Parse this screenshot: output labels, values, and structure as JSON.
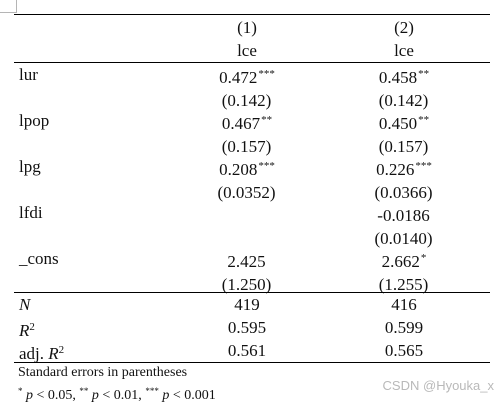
{
  "table": {
    "header": {
      "col1_number": "(1)",
      "col2_number": "(2)",
      "col1_depvar": "lce",
      "col2_depvar": "lce"
    },
    "rows": [
      {
        "label": "lur",
        "c1": "0.472",
        "c1_stars": "***",
        "c2": "0.458",
        "c2_stars": "**"
      },
      {
        "label": "",
        "c1": "(0.142)",
        "c1_stars": "",
        "c2": "(0.142)",
        "c2_stars": ""
      },
      {
        "label": "lpop",
        "c1": "0.467",
        "c1_stars": "**",
        "c2": "0.450",
        "c2_stars": "**"
      },
      {
        "label": "",
        "c1": "(0.157)",
        "c1_stars": "",
        "c2": "(0.157)",
        "c2_stars": ""
      },
      {
        "label": "lpg",
        "c1": "0.208",
        "c1_stars": "***",
        "c2": "0.226",
        "c2_stars": "***"
      },
      {
        "label": "",
        "c1": "(0.0352)",
        "c1_stars": "",
        "c2": "(0.0366)",
        "c2_stars": ""
      },
      {
        "label": "lfdi",
        "c1": "",
        "c1_stars": "",
        "c2": "-0.0186",
        "c2_stars": ""
      },
      {
        "label": "",
        "c1": "",
        "c1_stars": "",
        "c2": "(0.0140)",
        "c2_stars": ""
      },
      {
        "label": "_cons",
        "c1": "2.425",
        "c1_stars": "",
        "c2": "2.662",
        "c2_stars": "*"
      },
      {
        "label": "",
        "c1": "(1.250)",
        "c1_stars": "",
        "c2": "(1.255)",
        "c2_stars": ""
      }
    ],
    "stats": {
      "n_label": "N",
      "n_c1": "419",
      "n_c2": "416",
      "r2_label": "R",
      "r2_sup": "2",
      "r2_c1": "0.595",
      "r2_c2": "0.599",
      "adj_prefix": "adj. ",
      "adj_label": "R",
      "adj_sup": "2",
      "adj_c1": "0.561",
      "adj_c2": "0.565"
    },
    "notes": {
      "line1": "Standard errors in parentheses",
      "p1_star": "*",
      "p1_var": "p",
      "p1_text": " < 0.05, ",
      "p2_star": "**",
      "p2_var": "p",
      "p2_text": " < 0.01, ",
      "p3_star": "***",
      "p3_var": "p",
      "p3_text": " < 0.001"
    }
  },
  "watermark": "CSDN @Hyouka_x"
}
